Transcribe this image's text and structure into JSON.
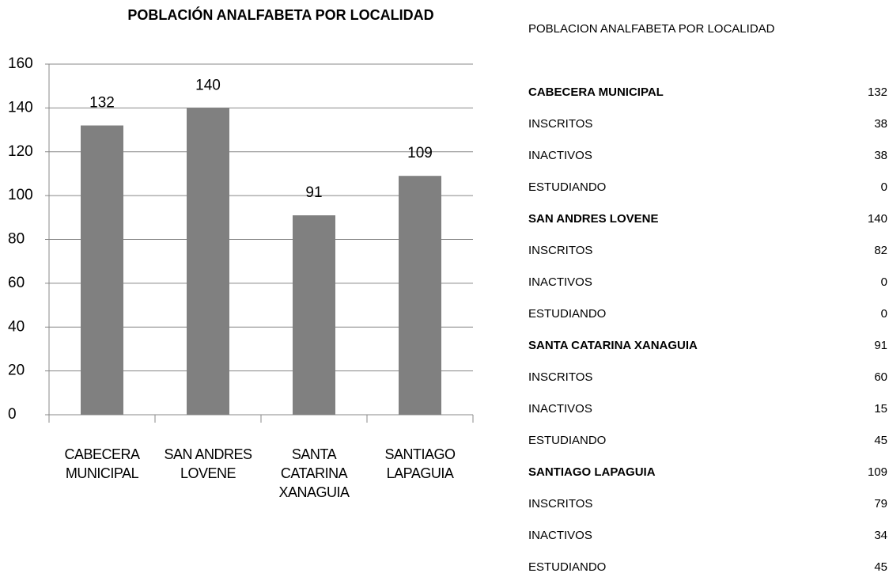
{
  "chart_data": {
    "type": "bar",
    "title": "POBLACIÓN ANALFABETA POR LOCALIDAD",
    "categories": [
      "CABECERA MUNICIPAL",
      "SAN ANDRES LOVENE",
      "SANTA CATARINA XANAGUIA",
      "SANTIAGO LAPAGUIA"
    ],
    "values": [
      132,
      140,
      91,
      109
    ],
    "color": "#808080",
    "ylim": [
      0,
      160
    ],
    "yticks": [
      0,
      20,
      40,
      60,
      80,
      100,
      120,
      140,
      160
    ],
    "grid": true
  },
  "table": {
    "title": "POBLACION ANALFABETA POR LOCALIDAD",
    "rows": [
      {
        "label": "CABECERA MUNICIPAL",
        "value": 132,
        "bold": true
      },
      {
        "label": "INSCRITOS",
        "value": 38,
        "bold": false
      },
      {
        "label": "INACTIVOS",
        "value": 38,
        "bold": false
      },
      {
        "label": "ESTUDIANDO",
        "value": 0,
        "bold": false
      },
      {
        "label": "SAN ANDRES LOVENE",
        "value": 140,
        "bold": true
      },
      {
        "label": "INSCRITOS",
        "value": 82,
        "bold": false
      },
      {
        "label": "INACTIVOS",
        "value": 0,
        "bold": false
      },
      {
        "label": "ESTUDIANDO",
        "value": 0,
        "bold": false
      },
      {
        "label": "SANTA CATARINA XANAGUIA",
        "value": 91,
        "bold": true
      },
      {
        "label": "INSCRITOS",
        "value": 60,
        "bold": false
      },
      {
        "label": "INACTIVOS",
        "value": 15,
        "bold": false
      },
      {
        "label": "ESTUDIANDO",
        "value": 45,
        "bold": false
      },
      {
        "label": "SANTIAGO LAPAGUIA",
        "value": 109,
        "bold": true
      },
      {
        "label": "INSCRITOS",
        "value": 79,
        "bold": false
      },
      {
        "label": "INACTIVOS",
        "value": 34,
        "bold": false
      },
      {
        "label": "ESTUDIANDO",
        "value": 45,
        "bold": false
      }
    ]
  }
}
